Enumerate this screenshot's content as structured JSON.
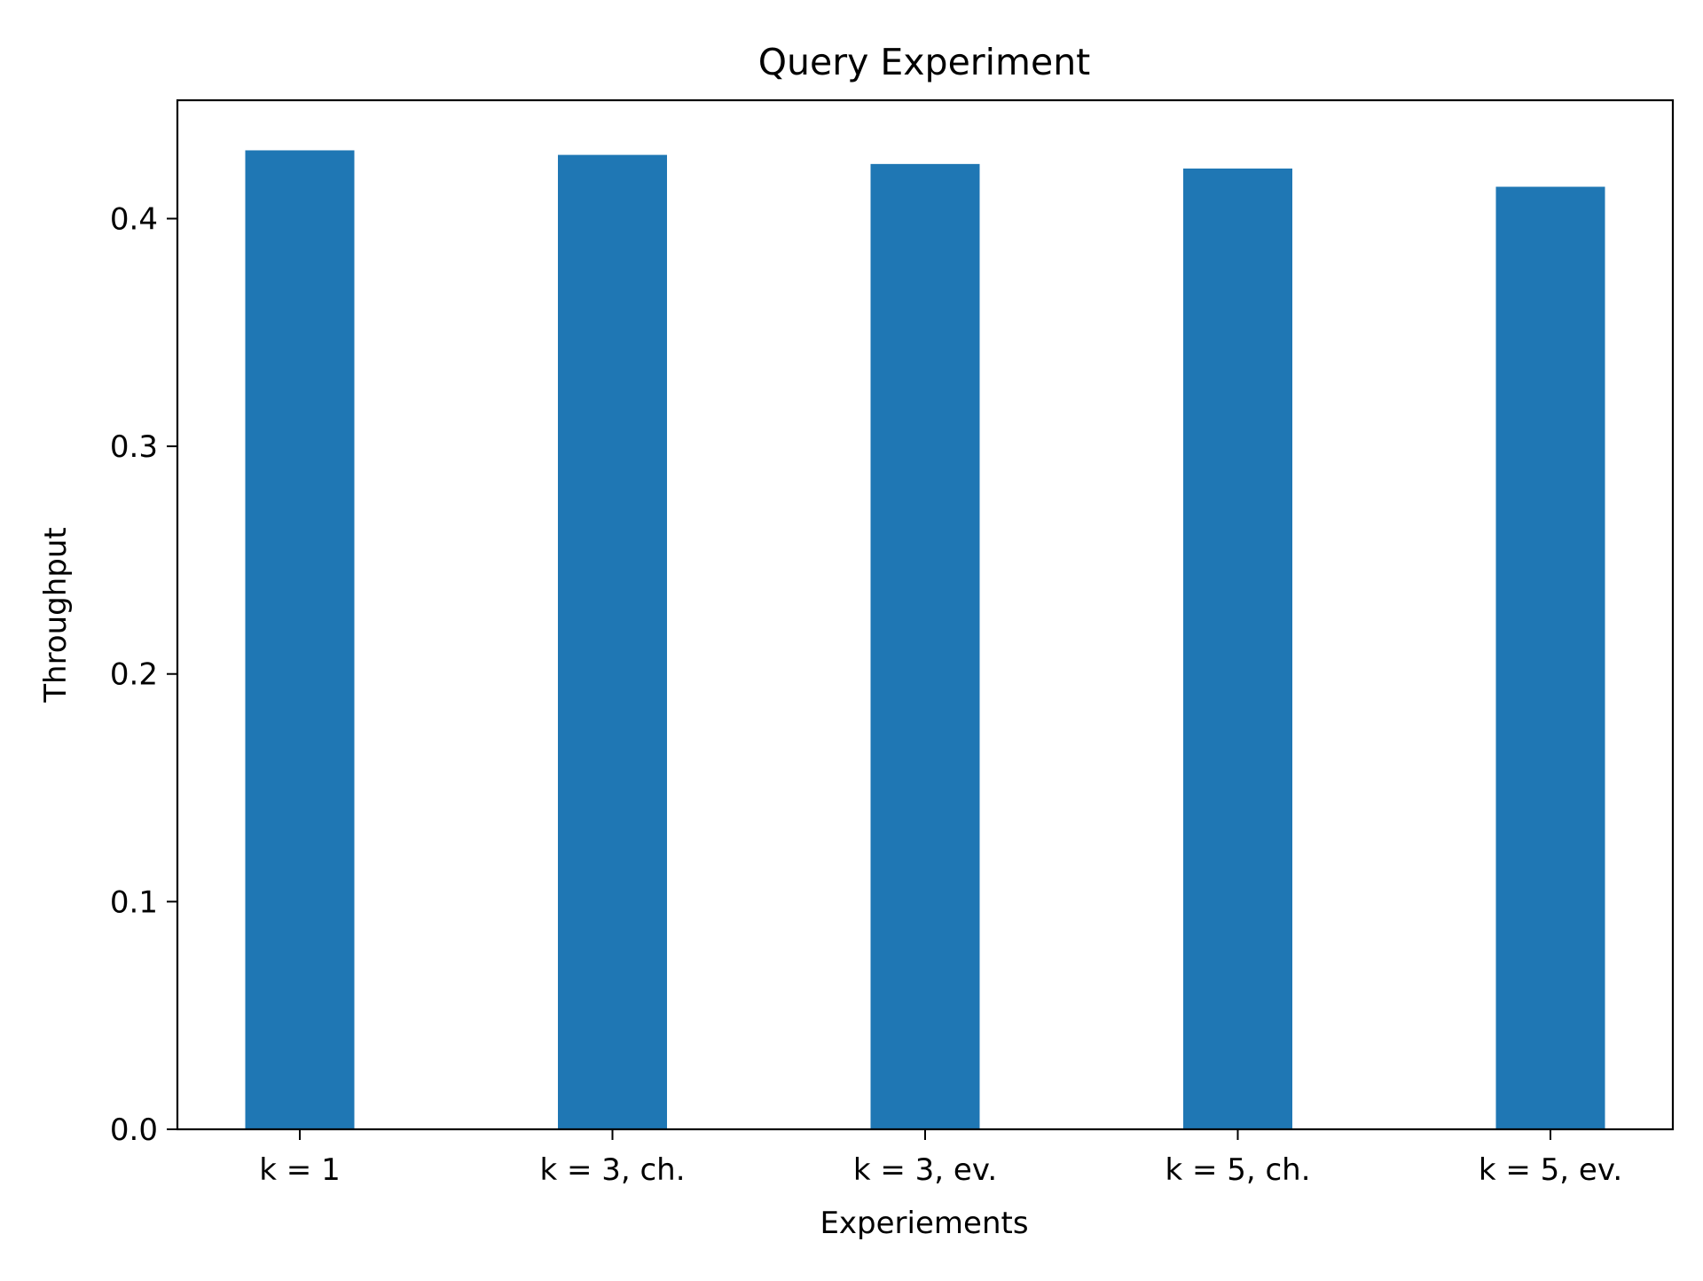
{
  "chart_data": {
    "type": "bar",
    "title": "Query Experiment",
    "xlabel": "Experiements",
    "ylabel": "Throughput",
    "categories": [
      "k = 1",
      "k = 3, ch.",
      "k = 3, ev.",
      "k = 5, ch.",
      "k = 5, ev."
    ],
    "values": [
      0.43,
      0.428,
      0.424,
      0.422,
      0.414
    ],
    "ylim": [
      0,
      0.452
    ],
    "yticks": [
      "0.0",
      "0.1",
      "0.2",
      "0.3",
      "0.4"
    ],
    "bar_color": "#1f77b4",
    "grid": false,
    "legend": "none"
  }
}
